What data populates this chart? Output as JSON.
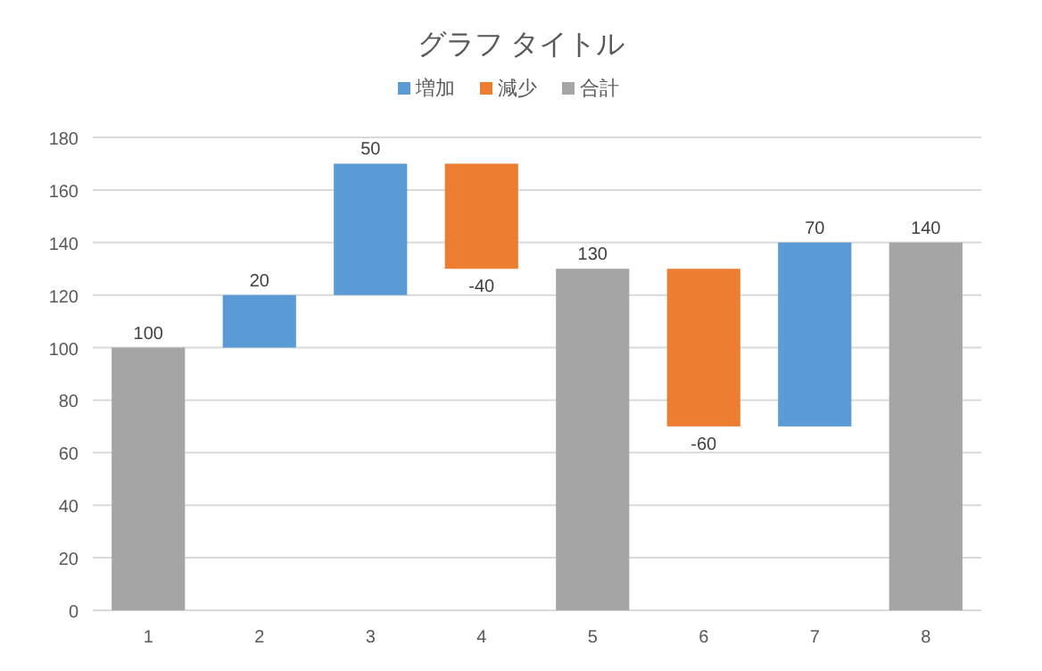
{
  "chart_data": {
    "type": "bar",
    "title": "グラフ タイトル",
    "categories": [
      "1",
      "2",
      "3",
      "4",
      "5",
      "6",
      "7",
      "8"
    ],
    "series": [
      {
        "name": "増加",
        "color": "#5b9bd5",
        "values": [
          null,
          20,
          50,
          null,
          null,
          null,
          70,
          null
        ],
        "base": [
          null,
          100,
          120,
          null,
          null,
          null,
          70,
          null
        ]
      },
      {
        "name": "減少",
        "color": "#ed7d31",
        "values": [
          null,
          null,
          null,
          -40,
          null,
          -60,
          null,
          null
        ],
        "base": [
          null,
          null,
          null,
          170,
          null,
          130,
          null,
          null
        ]
      },
      {
        "name": "合計",
        "color": "#a5a5a5",
        "values": [
          100,
          null,
          null,
          null,
          130,
          null,
          null,
          140
        ]
      }
    ],
    "ylim": [
      0,
      180
    ],
    "yticks": [
      0,
      20,
      40,
      60,
      80,
      100,
      120,
      140,
      160,
      180
    ],
    "grid": "y",
    "legend": "top",
    "data_labels": true
  }
}
